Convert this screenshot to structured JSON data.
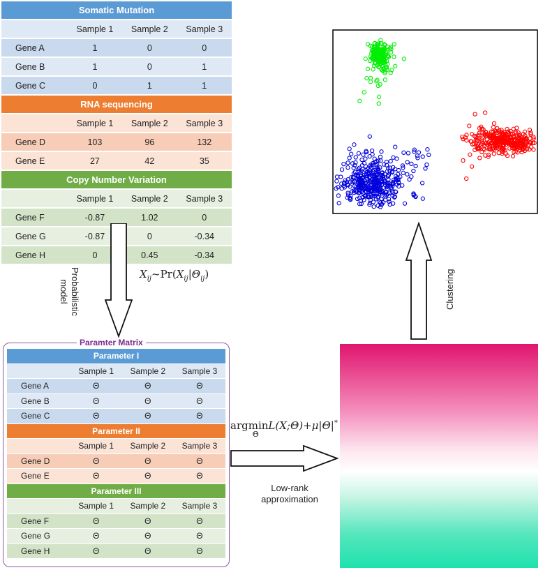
{
  "columns": [
    "Sample 1",
    "Sample 2",
    "Sample 3"
  ],
  "colors": {
    "somatic": "#5b9bd5",
    "somatic_row1": "#dfe9f5",
    "somatic_row2": "#c9d9ee",
    "rna": "#ed7d31",
    "rna_row1": "#fbe3d6",
    "rna_row2": "#f7cdb8",
    "cnv": "#70ad47",
    "cnv_row1": "#e6efe0",
    "cnv_row2": "#d3e3c8",
    "cluster_green": "#00ee00",
    "cluster_blue": "#0000dd",
    "cluster_red": "#ff0000"
  },
  "input_tables": [
    {
      "title": "Somatic Mutation",
      "theme": "somatic",
      "rows": [
        {
          "gene": "Gene A",
          "values": [
            "1",
            "0",
            "0"
          ]
        },
        {
          "gene": "Gene B",
          "values": [
            "1",
            "0",
            "1"
          ]
        },
        {
          "gene": "Gene C",
          "values": [
            "0",
            "1",
            "1"
          ]
        }
      ]
    },
    {
      "title": "RNA sequencing",
      "theme": "rna",
      "rows": [
        {
          "gene": "Gene D",
          "values": [
            "103",
            "96",
            "132"
          ]
        },
        {
          "gene": "Gene E",
          "values": [
            "27",
            "42",
            "35"
          ]
        }
      ]
    },
    {
      "title": "Copy Number Variation",
      "theme": "cnv",
      "rows": [
        {
          "gene": "Gene F",
          "values": [
            "-0.87",
            "1.02",
            "0"
          ]
        },
        {
          "gene": "Gene G",
          "values": [
            "-0.87",
            "0",
            "-0.34"
          ]
        },
        {
          "gene": "Gene H",
          "values": [
            "0",
            "0.45",
            "-0.34"
          ]
        }
      ]
    }
  ],
  "parameter_matrix": {
    "title": "Paramter Matrix",
    "tables": [
      {
        "title": "Parameter I",
        "theme": "somatic",
        "rows": [
          {
            "gene": "Gene A",
            "values": [
              "Θ",
              "Θ",
              "Θ"
            ]
          },
          {
            "gene": "Gene B",
            "values": [
              "Θ",
              "Θ",
              "Θ"
            ]
          },
          {
            "gene": "Gene C",
            "values": [
              "Θ",
              "Θ",
              "Θ"
            ]
          }
        ]
      },
      {
        "title": "Parameter II",
        "theme": "rna",
        "rows": [
          {
            "gene": "Gene D",
            "values": [
              "Θ",
              "Θ",
              "Θ"
            ]
          },
          {
            "gene": "Gene E",
            "values": [
              "Θ",
              "Θ",
              "Θ"
            ]
          }
        ]
      },
      {
        "title": "Parameter III",
        "theme": "cnv",
        "rows": [
          {
            "gene": "Gene F",
            "values": [
              "Θ",
              "Θ",
              "Θ"
            ]
          },
          {
            "gene": "Gene G",
            "values": [
              "Θ",
              "Θ",
              "Θ"
            ]
          },
          {
            "gene": "Gene H",
            "values": [
              "Θ",
              "Θ",
              "Θ"
            ]
          }
        ]
      }
    ]
  },
  "labels": {
    "probabilistic_model": "Probabilistic model",
    "formula_model": "X_ij ~ Pr(X_ij | Θ_ij)",
    "clustering": "Clustering",
    "formula_lowrank": "argmin_Θ L(X;Θ) + μ|Θ|*",
    "low_rank": "Low-rank approximation"
  }
}
